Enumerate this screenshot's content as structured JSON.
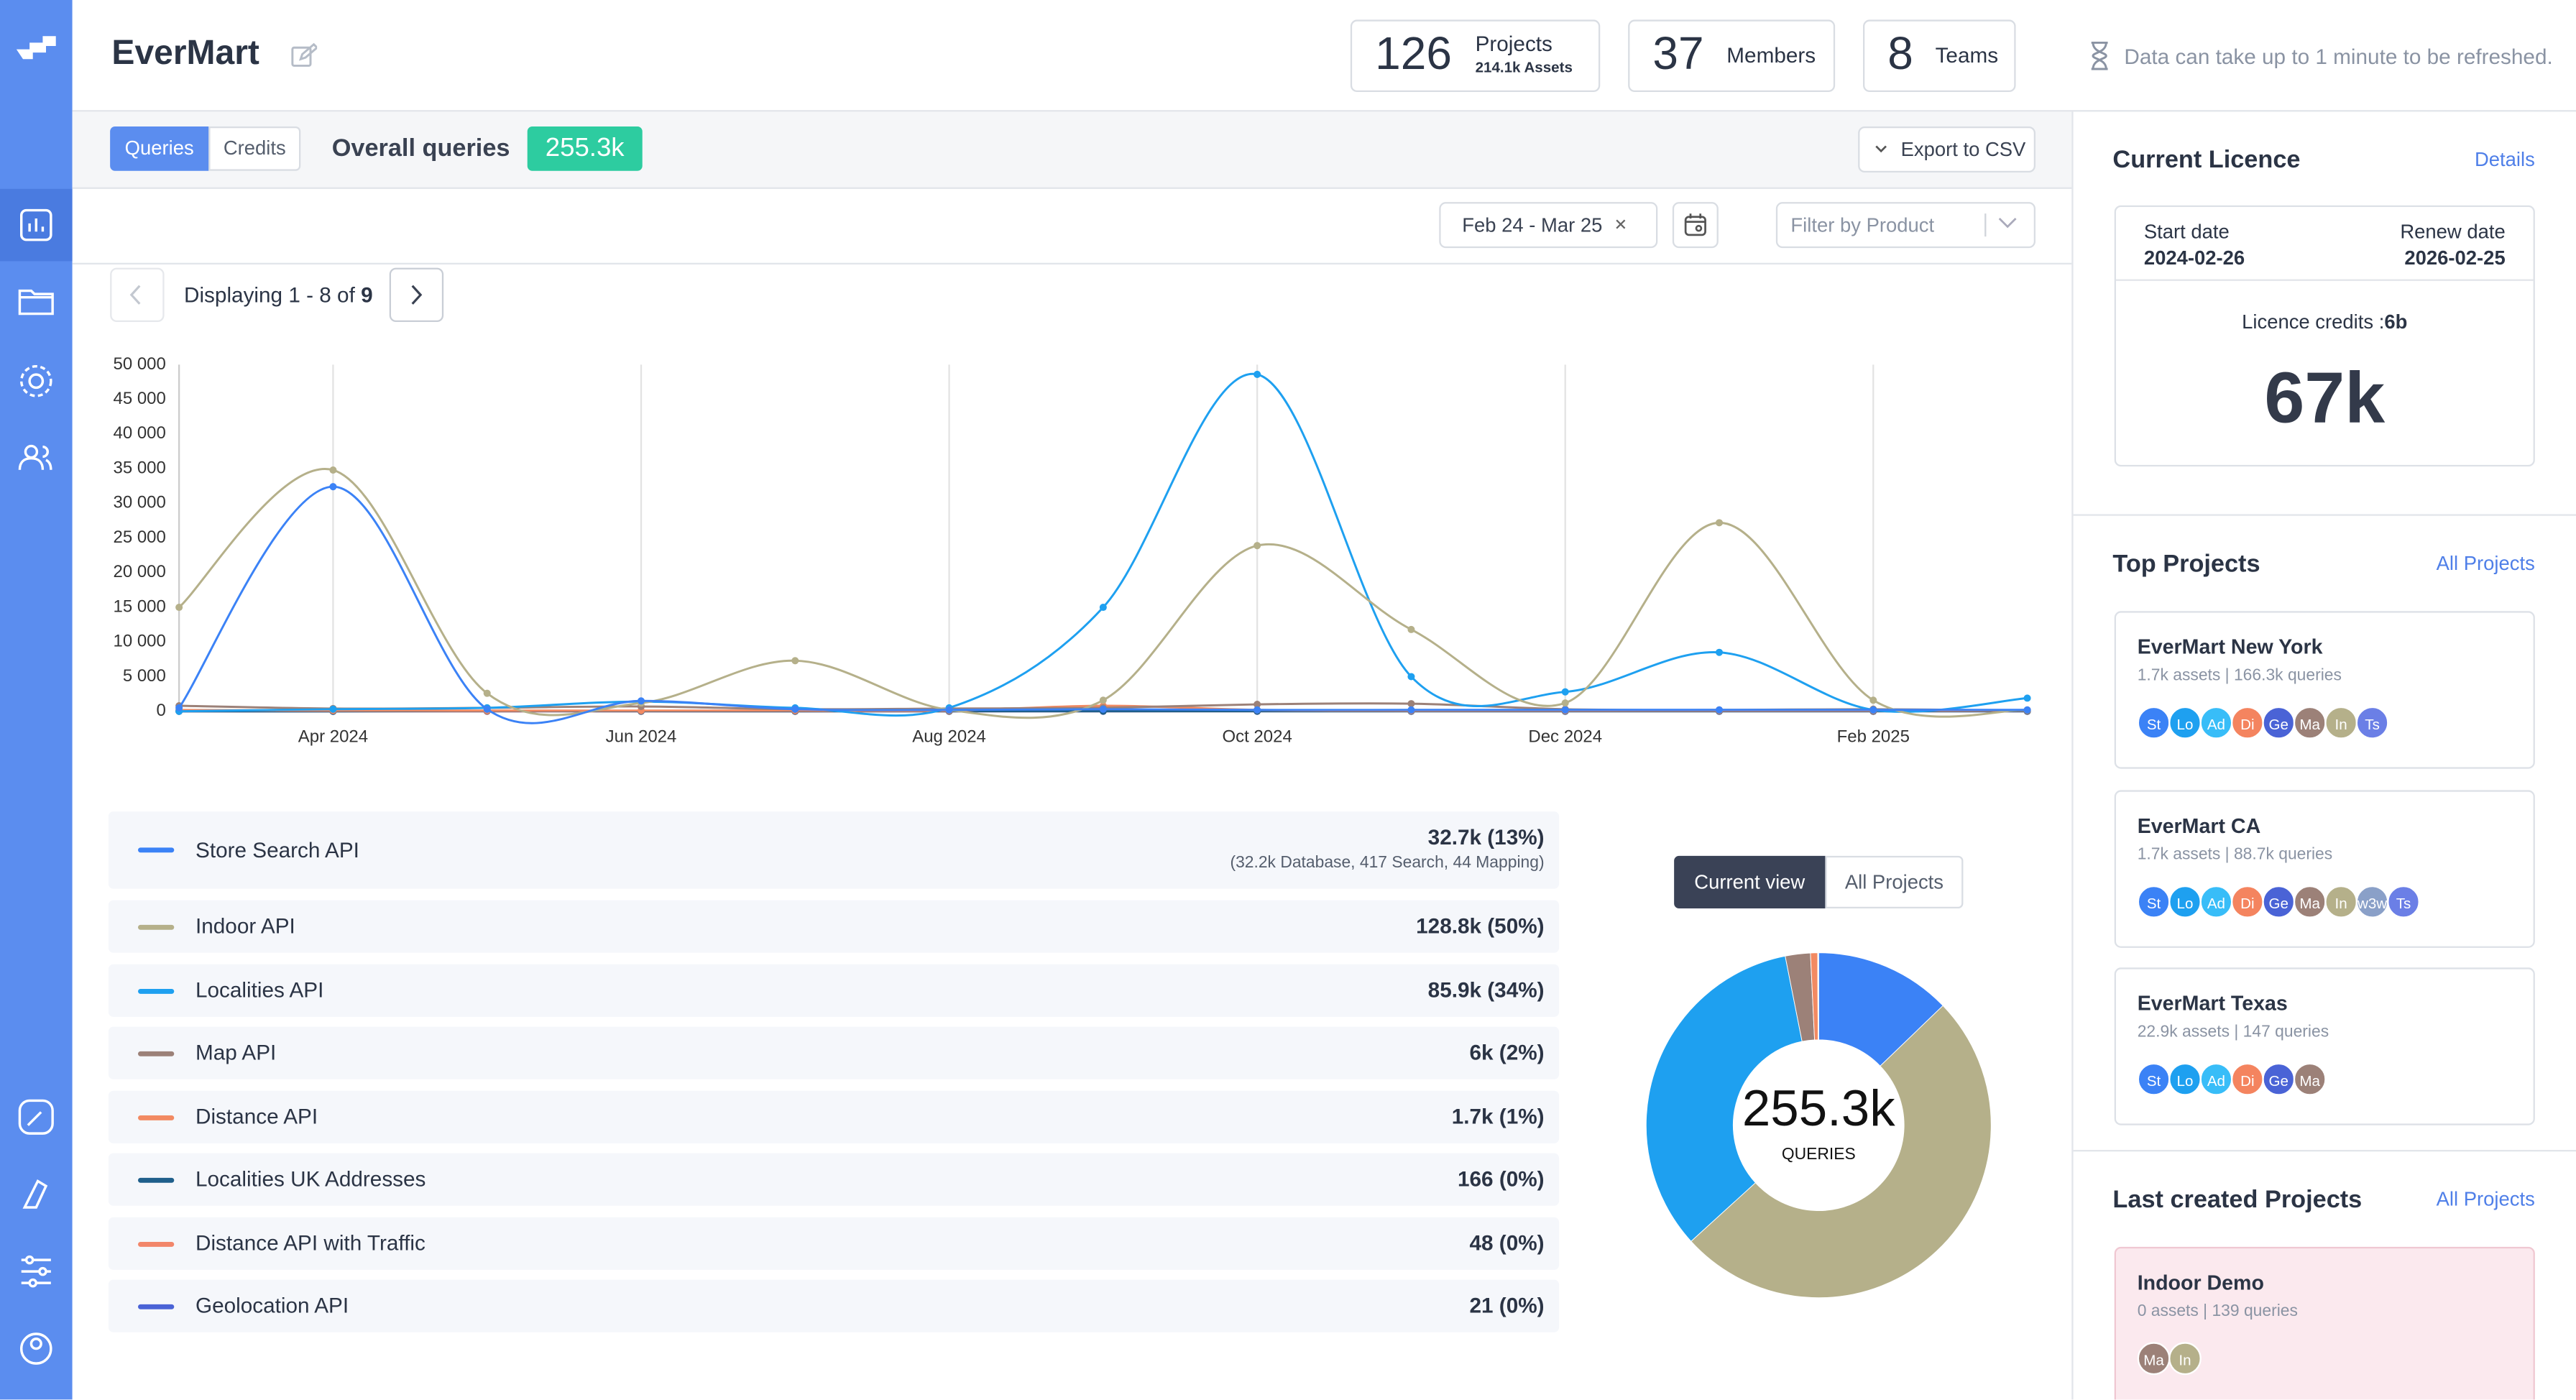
{
  "header": {
    "title": "EverMart",
    "stats": [
      {
        "value": 126,
        "label": "Projects",
        "sub": "214.1k Assets"
      },
      {
        "value": 37,
        "label": "Members"
      },
      {
        "value": 8,
        "label": "Teams"
      }
    ],
    "notice": "Data can take up to 1 minute to be refreshed."
  },
  "toolbar": {
    "tabs": [
      "Queries",
      "Credits"
    ],
    "overall_label": "Overall queries",
    "overall_value": "255.3k",
    "export": "Export to CSV",
    "date_range": "Feb 24 - Mar 25",
    "filter_placeholder": "Filter by Product",
    "pagination": {
      "text": "Displaying 1 - 8 of",
      "total": 9
    }
  },
  "chart_data": [
    {
      "type": "line",
      "categories": [
        null,
        "Apr 2024",
        null,
        "Jun 2024",
        null,
        "Aug 2024",
        null,
        "Oct 2024",
        null,
        "Dec 2024",
        null,
        "Feb 2025",
        null
      ],
      "ylim": [
        0,
        50000
      ],
      "yticks": [
        0,
        {
          "value": 5000,
          "label": "5 000"
        },
        {
          "value": 10000,
          "label": "10 000"
        },
        {
          "value": 15000,
          "label": "15 000"
        },
        {
          "value": 20000,
          "label": "20 000"
        },
        {
          "value": 25000,
          "label": "25 000"
        },
        {
          "value": 30000,
          "label": "30 000"
        },
        {
          "value": 35000,
          "label": "35 000"
        },
        {
          "value": 40000,
          "label": "40 000"
        },
        {
          "value": 45000,
          "label": "45 000"
        },
        {
          "value": 50000,
          "label": "50 000"
        }
      ],
      "grid": true,
      "series": [
        {
          "name": "Store Search API",
          "color": "#3b82f6",
          "values": [
            500,
            32400,
            300,
            1500,
            300,
            200,
            300,
            200,
            200,
            200,
            200,
            200,
            200
          ]
        },
        {
          "name": "Indoor API",
          "color": "#b5b08a",
          "values": [
            15000,
            34800,
            2600,
            1200,
            7300,
            200,
            1600,
            23900,
            11800,
            1200,
            27200,
            1600,
            200
          ]
        },
        {
          "name": "Localities API",
          "color": "#1ea0f0",
          "values": [
            0,
            300,
            500,
            1400,
            500,
            500,
            15000,
            48600,
            5000,
            2800,
            8500,
            200,
            1900
          ]
        },
        {
          "name": "Map API",
          "color": "#9c8178",
          "values": [
            800,
            400,
            500,
            700,
            300,
            400,
            500,
            1000,
            1100,
            300,
            200,
            300,
            100
          ]
        },
        {
          "name": "Distance API",
          "color": "#f28a62",
          "values": [
            200,
            100,
            100,
            100,
            100,
            100,
            800,
            200,
            100,
            100,
            100,
            100,
            100
          ]
        },
        {
          "name": "Localities UK Addresses",
          "color": "#1f5f8b",
          "values": [
            0,
            0,
            50,
            20,
            10,
            10,
            10,
            10,
            10,
            10,
            10,
            10,
            10
          ]
        },
        {
          "name": "Distance API with Traffic",
          "color": "#f2866a",
          "values": [
            0,
            0,
            0,
            0,
            0,
            0,
            10,
            10,
            10,
            10,
            10,
            5,
            3
          ]
        },
        {
          "name": "Geolocation API",
          "color": "#4a63d6",
          "values": [
            0,
            0,
            0,
            0,
            0,
            0,
            0,
            5,
            5,
            5,
            3,
            3,
            0
          ]
        }
      ]
    },
    {
      "type": "pie",
      "values": [
        32700,
        128800,
        85900,
        6000,
        1700,
        166,
        48,
        21
      ],
      "value_labels": [
        "32.7k (13%)",
        "128.8k (50%)",
        "85.9k (34%)",
        "6k (2%)",
        "1.7k (1%)",
        "166 (0%)",
        "48 (0%)",
        "21 (0%)"
      ],
      "annotations": [
        "(32.2k Database, 417 Search, 44 Mapping)"
      ],
      "center_value": "255.3k",
      "center_label": "QUERIES",
      "toggle": [
        "Current view",
        "All Projects"
      ]
    }
  ],
  "licence": {
    "title": "Current Licence",
    "link": "Details",
    "start_label": "Start date",
    "start": "2024-02-26",
    "renew_label": "Renew date",
    "renew": "2026-02-25",
    "credits_label": "Licence credits :",
    "credits": "6b",
    "amount": "67k"
  },
  "top_projects": {
    "title": "Top Projects",
    "link": "All Projects",
    "items": [
      {
        "name": "EverMart New York",
        "stats": "1.7k assets | 166.3k queries",
        "avatars": [
          "St",
          "Lo",
          "Ad",
          "Di",
          "Ge",
          "Ma",
          "In",
          "Ts"
        ]
      },
      {
        "name": "EverMart CA",
        "stats": "1.7k assets | 88.7k queries",
        "avatars": [
          "St",
          "Lo",
          "Ad",
          "Di",
          "Ge",
          "Ma",
          "In",
          "w3w",
          "Ts"
        ]
      },
      {
        "name": "EverMart Texas",
        "stats": "22.9k assets | 147 queries",
        "avatars": [
          "St",
          "Lo",
          "Ad",
          "Di",
          "Ge",
          "Ma"
        ]
      }
    ]
  },
  "last_projects": {
    "title": "Last created Projects",
    "link": "All Projects",
    "items": [
      {
        "name": "Indoor Demo",
        "stats": "0 assets | 139 queries",
        "avatars": [
          "Ma",
          "In"
        ]
      }
    ]
  }
}
